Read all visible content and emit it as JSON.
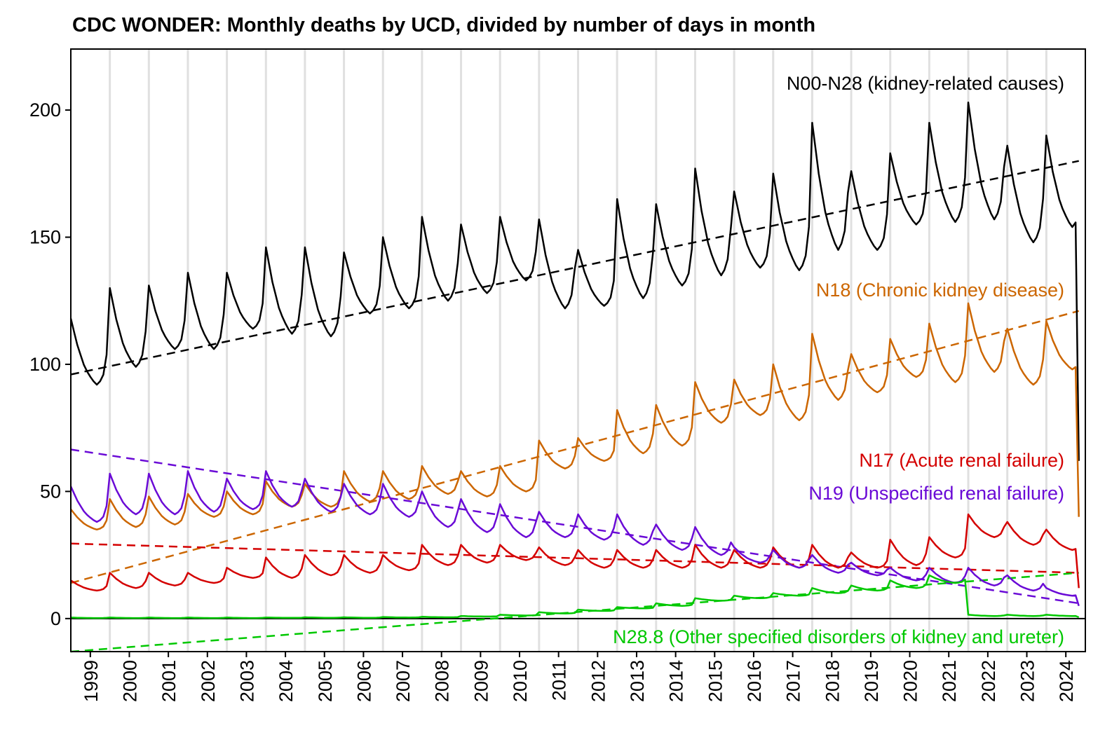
{
  "chart_data": {
    "type": "line",
    "title": "CDC WONDER: Monthly deaths by UCD, divided by number of days in month",
    "xlabel": "",
    "ylabel": "",
    "ylim": [
      -13,
      224
    ],
    "xlim": [
      1999,
      2025
    ],
    "yticks": [
      0,
      50,
      100,
      150,
      200
    ],
    "xtick_labels": [
      "1999",
      "2000",
      "2001",
      "2002",
      "2003",
      "2004",
      "2005",
      "2006",
      "2007",
      "2008",
      "2009",
      "2010",
      "2011",
      "2012",
      "2013",
      "2014",
      "2015",
      "2016",
      "2017",
      "2018",
      "2019",
      "2020",
      "2021",
      "2022",
      "2023",
      "2024"
    ],
    "grid": "vertical lines at each year start",
    "first_month": "1999-01",
    "last_month": "2024-11",
    "seasonal_shape_note": "monthly value = trough + factor[month]*(peak - trough); last month overridden by final_value",
    "seasonal_factor": [
      1,
      0.8,
      0.6,
      0.45,
      0.3,
      0.2,
      0.12,
      0.05,
      0,
      0.05,
      0.15,
      0.45
    ],
    "series": [
      {
        "name": "N00-N28 (kidney-related causes)",
        "color": "#000000",
        "annual_peaks": [
          118,
          130,
          131,
          136,
          136,
          146,
          146,
          144,
          150,
          158,
          155,
          158,
          157,
          145,
          165,
          163,
          177,
          168,
          175,
          195,
          176,
          183,
          195,
          203,
          186,
          190
        ],
        "annual_troughs": [
          92,
          99,
          106,
          106,
          114,
          112,
          111,
          120,
          122,
          125,
          128,
          133,
          122,
          123,
          126,
          131,
          135,
          138,
          137,
          145,
          145,
          155,
          156,
          157,
          148,
          154
        ],
        "final_value": 62,
        "trend": [
          96,
          180
        ]
      },
      {
        "name": "N18 (Chronic kidney disease)",
        "color": "#cc6600",
        "annual_peaks": [
          43,
          47,
          48,
          49,
          50,
          54,
          53,
          58,
          58,
          60,
          58,
          60,
          70,
          71,
          82,
          84,
          93,
          94,
          100,
          112,
          104,
          110,
          116,
          124,
          114,
          117
        ],
        "annual_troughs": [
          35,
          36,
          37,
          40,
          41,
          44,
          44,
          46,
          47,
          49,
          48,
          50,
          59,
          62,
          65,
          68,
          77,
          80,
          78,
          86,
          89,
          95,
          93,
          97,
          92,
          98
        ],
        "final_value": 40,
        "trend": [
          14,
          121
        ]
      },
      {
        "name": "N17 (Acute renal failure)",
        "color": "#d40000",
        "annual_peaks": [
          15,
          18,
          18,
          18,
          20,
          24,
          25,
          25,
          25,
          29,
          29,
          29,
          28,
          27,
          27,
          27,
          29,
          27,
          28,
          29,
          26,
          31,
          32,
          41,
          38,
          35
        ],
        "annual_troughs": [
          11,
          12,
          13,
          14,
          16,
          16,
          17,
          18,
          19,
          21,
          22,
          23,
          21,
          20,
          20,
          20,
          20,
          20,
          20,
          20,
          20,
          21,
          24,
          32,
          29,
          27
        ],
        "final_value": 12,
        "trend": [
          29.5,
          18
        ]
      },
      {
        "name": "N19 (Unspecified renal failure)",
        "color": "#6a0ad6",
        "annual_peaks": [
          52,
          57,
          57,
          58,
          55,
          58,
          55,
          53,
          53,
          50,
          47,
          45,
          42,
          41,
          41,
          37,
          36,
          28,
          27,
          25,
          22,
          20,
          20,
          20,
          17,
          12
        ],
        "annual_troughs": [
          38,
          41,
          41,
          42,
          43,
          44,
          42,
          41,
          40,
          36,
          34,
          32,
          32,
          31,
          29,
          27,
          25,
          22,
          20,
          18,
          17,
          15,
          14,
          13,
          11,
          9
        ],
        "final_value": 5,
        "trend": [
          66.5,
          6
        ]
      },
      {
        "name": "N28.8 (Other specified disorders of kidney and ureter)",
        "color": "#00c800",
        "annual_peaks": [
          0.4,
          0.4,
          0.4,
          0.4,
          0.4,
          0.4,
          0.5,
          0.5,
          0.6,
          0.7,
          1.0,
          1.5,
          2.5,
          3.5,
          4.5,
          6,
          8,
          9,
          10,
          12,
          13,
          15,
          17,
          1.5,
          1.5,
          1.5
        ],
        "annual_troughs": [
          0.2,
          0.2,
          0.2,
          0.2,
          0.2,
          0.3,
          0.3,
          0.3,
          0.4,
          0.5,
          0.8,
          1.2,
          2,
          3,
          4,
          5,
          7,
          8,
          9,
          10,
          11,
          12,
          14,
          1,
          1,
          1
        ],
        "final_value": 0.5,
        "trend": [
          -13,
          18
        ]
      }
    ]
  }
}
